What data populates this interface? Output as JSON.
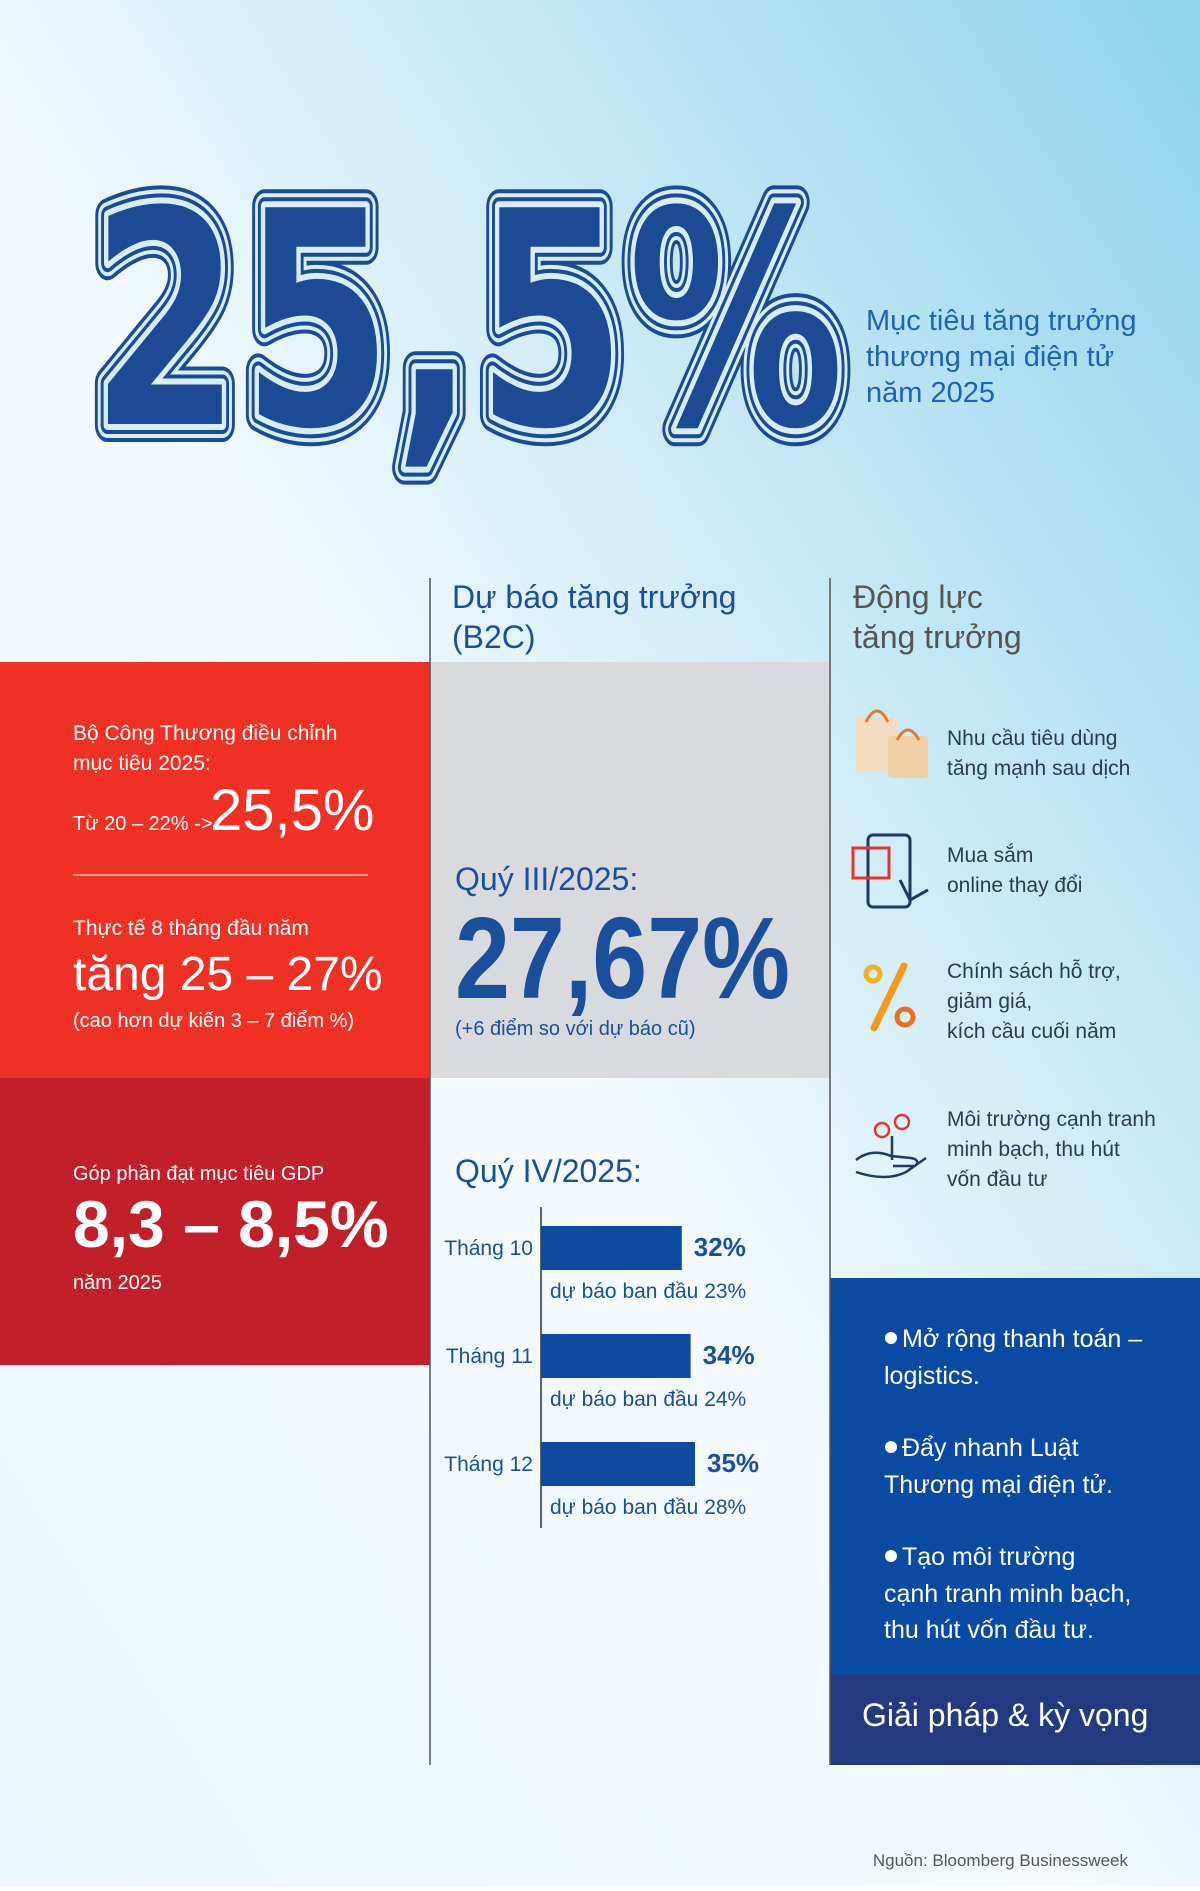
{
  "headline": {
    "value_text": "25,5%",
    "caption": [
      "Mục tiêu tăng trưởng",
      "thương mại điện tử",
      "năm 2025"
    ]
  },
  "left_column": {
    "adjust": [
      "Bộ Công Thương điều chỉnh",
      "mục tiêu 2025:"
    ],
    "from": "Từ 20 – 22% ->",
    "to": "25,5%",
    "actual": "Thực tế 8 tháng đầu năm",
    "actual_value": "tăng 25 – 27%",
    "actual_note": "(cao hơn dự kiến 3 – 7 điểm %)",
    "gdp_intro": "Góp phần đạt mục tiêu GDP",
    "gdp_value": "8,3 – 8,5%",
    "gdp_year": "năm 2025"
  },
  "middle_column": {
    "heading": [
      "Dự báo tăng trưởng",
      "(B2C)"
    ],
    "q3_label": "Quý III/2025:",
    "q3_value": "27,67%",
    "q3_note": "(+6 điểm so với dự báo cũ)"
  },
  "chart_data": {
    "type": "bar",
    "title": "Quý IV/2025:",
    "categories": [
      "Tháng 10",
      "Tháng 11",
      "Tháng 12"
    ],
    "values": [
      32,
      34,
      35
    ],
    "value_labels": [
      "32%",
      "34%",
      "35%"
    ],
    "color": "#0f4aa0",
    "annotations": [
      "dự báo ban đầu 23%",
      "dự báo ban đầu 24%",
      "dự báo ban đầu 28%"
    ]
  },
  "right_column": {
    "heading": [
      "Động lực",
      "tăng trưởng"
    ],
    "drivers": [
      [
        "Nhu cầu tiêu dùng",
        "tăng mạnh sau dịch"
      ],
      [
        "Mua sắm",
        "online thay đổi"
      ],
      [
        "Chính sách hỗ trợ,",
        "giảm giá,",
        "kích cầu cuối năm"
      ],
      [
        "Môi trường cạnh tranh",
        "minh bạch, thu hút",
        "vốn đầu tư"
      ]
    ],
    "solutions": [
      [
        "Mở rộng thanh toán –",
        "logistics."
      ],
      [
        "Đẩy nhanh Luật",
        "Thương mại điện tử."
      ],
      [
        "Tạo môi trường",
        "cạnh tranh minh bạch,",
        "thu hút vốn đầu tư."
      ]
    ],
    "solutions_title": "Giải pháp & kỳ vọng"
  },
  "source": "Nguồn: Bloomberg Businessweek"
}
